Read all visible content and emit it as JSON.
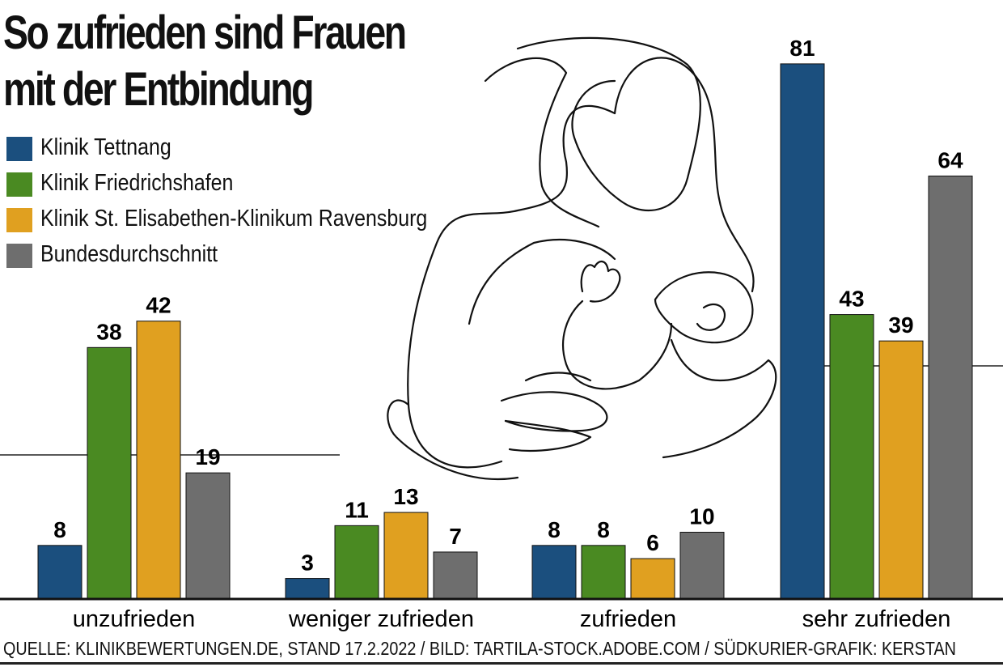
{
  "chart_data": {
    "type": "bar",
    "title_lines": [
      "So zufrieden sind Frauen",
      "mit der Entbindung"
    ],
    "categories": [
      "unzufrieden",
      "weniger zufrieden",
      "zufrieden",
      "sehr zufrieden"
    ],
    "series": [
      {
        "name": "Klinik Tettnang",
        "color": "#1b4f7e",
        "values": [
          8,
          3,
          8,
          81
        ]
      },
      {
        "name": "Klinik Friedrichshafen",
        "color": "#4a8a22",
        "values": [
          38,
          11,
          8,
          43
        ]
      },
      {
        "name": "Klinik St. Elisabethen-Klinikum Ravensburg",
        "color": "#e0a020",
        "values": [
          42,
          13,
          6,
          39
        ]
      },
      {
        "name": "Bundesdurchschnitt",
        "color": "#6e6e6e",
        "values": [
          19,
          7,
          10,
          64
        ]
      }
    ],
    "ylim": [
      0,
      85
    ],
    "legend_position": "top-left",
    "grid": false,
    "source": "QUELLE: KLINIKBEWERTUNGEN.DE, STAND 17.2.2022 / BILD: TARTILA-STOCK.ADOBE.COM / SÜDKURIER-GRAFIK: KERSTAN"
  }
}
